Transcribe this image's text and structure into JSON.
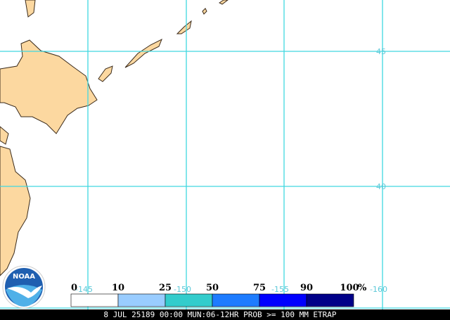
{
  "grid_labels": {
    "lat": [
      "45",
      "40"
    ],
    "lon": [
      "-145",
      "-150",
      "-155",
      "-160"
    ]
  },
  "legend": {
    "labels": [
      "0",
      "10",
      "25",
      "50",
      "75",
      "90",
      "100"
    ],
    "unit": "%",
    "colors": [
      "#ffffff",
      "#99ccff",
      "#33cccc",
      "#1e7cff",
      "#0000ff",
      "#000088"
    ]
  },
  "logo": "NOAA",
  "footer": "8 JUL 25189 00:00 MUN:06-12HR PROB >= 100 MM ETRAP"
}
